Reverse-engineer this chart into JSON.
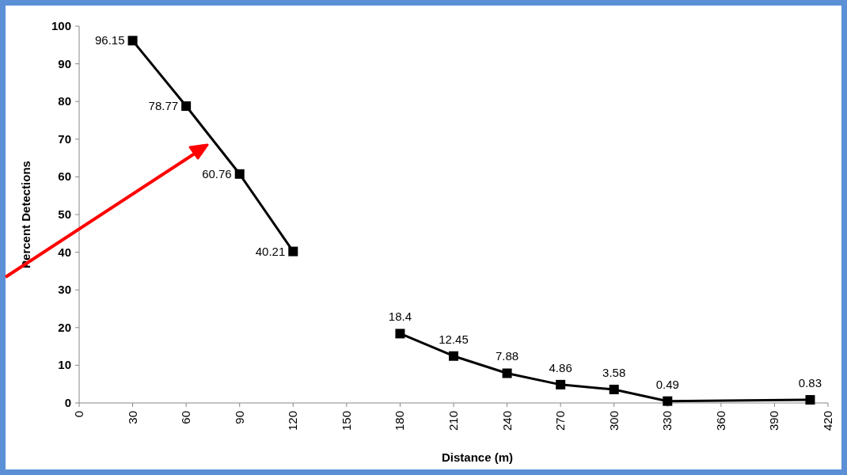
{
  "chart_data": {
    "type": "line",
    "xlabel": "Distance (m)",
    "ylabel": "Percent Detections",
    "x": [
      30,
      60,
      90,
      120,
      150,
      180,
      210,
      240,
      270,
      300,
      330,
      410
    ],
    "series": [
      {
        "color": "#000000",
        "values": [
          96.15,
          78.77,
          60.76,
          40.21,
          null,
          18.4,
          12.45,
          7.88,
          4.86,
          3.58,
          0.49,
          0.83
        ]
      }
    ],
    "xlim": [
      0,
      420
    ],
    "xticks": [
      0,
      30,
      60,
      90,
      120,
      150,
      180,
      210,
      240,
      270,
      300,
      330,
      360,
      390,
      420
    ],
    "ylim": [
      0,
      100
    ],
    "yticks": [
      0,
      10,
      20,
      30,
      40,
      50,
      60,
      70,
      80,
      90,
      100
    ],
    "data_labels": true,
    "marker": "square",
    "line_style": "solid",
    "grid": false
  }
}
